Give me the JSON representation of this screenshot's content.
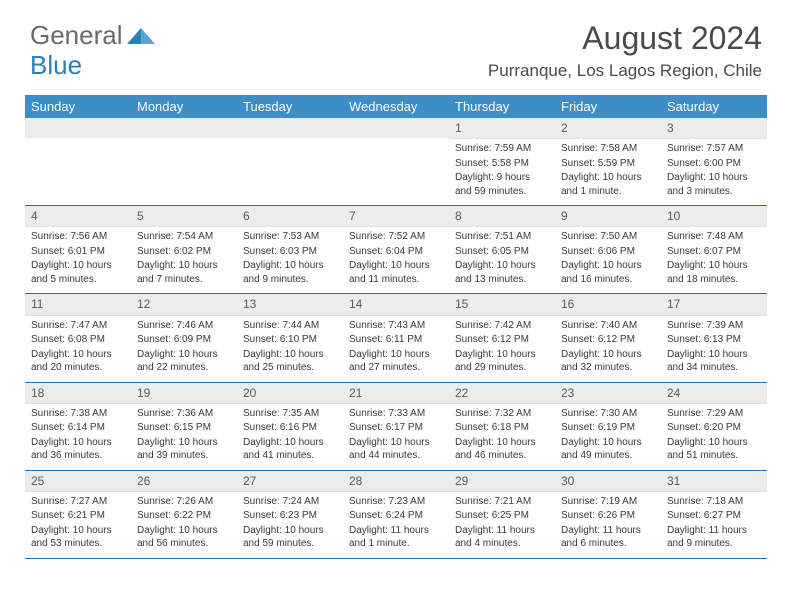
{
  "brand": {
    "text1": "General",
    "text2": "Blue",
    "icon_color": "#2a7fba"
  },
  "title": "August 2024",
  "location": "Purranque, Los Lagos Region, Chile",
  "colors": {
    "header_bg": "#3d8dc8",
    "header_text": "#ffffff",
    "num_bar_bg": "#ececec",
    "border": "#2a6da3",
    "text": "#3a3a3a"
  },
  "day_names": [
    "Sunday",
    "Monday",
    "Tuesday",
    "Wednesday",
    "Thursday",
    "Friday",
    "Saturday"
  ],
  "weeks": [
    [
      {
        "blank": true
      },
      {
        "blank": true
      },
      {
        "blank": true
      },
      {
        "blank": true
      },
      {
        "n": "1",
        "sunrise": "7:59 AM",
        "sunset": "5:58 PM",
        "daylight": "9 hours and 59 minutes."
      },
      {
        "n": "2",
        "sunrise": "7:58 AM",
        "sunset": "5:59 PM",
        "daylight": "10 hours and 1 minute."
      },
      {
        "n": "3",
        "sunrise": "7:57 AM",
        "sunset": "6:00 PM",
        "daylight": "10 hours and 3 minutes."
      }
    ],
    [
      {
        "n": "4",
        "sunrise": "7:56 AM",
        "sunset": "6:01 PM",
        "daylight": "10 hours and 5 minutes."
      },
      {
        "n": "5",
        "sunrise": "7:54 AM",
        "sunset": "6:02 PM",
        "daylight": "10 hours and 7 minutes."
      },
      {
        "n": "6",
        "sunrise": "7:53 AM",
        "sunset": "6:03 PM",
        "daylight": "10 hours and 9 minutes."
      },
      {
        "n": "7",
        "sunrise": "7:52 AM",
        "sunset": "6:04 PM",
        "daylight": "10 hours and 11 minutes."
      },
      {
        "n": "8",
        "sunrise": "7:51 AM",
        "sunset": "6:05 PM",
        "daylight": "10 hours and 13 minutes."
      },
      {
        "n": "9",
        "sunrise": "7:50 AM",
        "sunset": "6:06 PM",
        "daylight": "10 hours and 16 minutes."
      },
      {
        "n": "10",
        "sunrise": "7:48 AM",
        "sunset": "6:07 PM",
        "daylight": "10 hours and 18 minutes."
      }
    ],
    [
      {
        "n": "11",
        "sunrise": "7:47 AM",
        "sunset": "6:08 PM",
        "daylight": "10 hours and 20 minutes."
      },
      {
        "n": "12",
        "sunrise": "7:46 AM",
        "sunset": "6:09 PM",
        "daylight": "10 hours and 22 minutes."
      },
      {
        "n": "13",
        "sunrise": "7:44 AM",
        "sunset": "6:10 PM",
        "daylight": "10 hours and 25 minutes."
      },
      {
        "n": "14",
        "sunrise": "7:43 AM",
        "sunset": "6:11 PM",
        "daylight": "10 hours and 27 minutes."
      },
      {
        "n": "15",
        "sunrise": "7:42 AM",
        "sunset": "6:12 PM",
        "daylight": "10 hours and 29 minutes."
      },
      {
        "n": "16",
        "sunrise": "7:40 AM",
        "sunset": "6:12 PM",
        "daylight": "10 hours and 32 minutes."
      },
      {
        "n": "17",
        "sunrise": "7:39 AM",
        "sunset": "6:13 PM",
        "daylight": "10 hours and 34 minutes."
      }
    ],
    [
      {
        "n": "18",
        "sunrise": "7:38 AM",
        "sunset": "6:14 PM",
        "daylight": "10 hours and 36 minutes."
      },
      {
        "n": "19",
        "sunrise": "7:36 AM",
        "sunset": "6:15 PM",
        "daylight": "10 hours and 39 minutes."
      },
      {
        "n": "20",
        "sunrise": "7:35 AM",
        "sunset": "6:16 PM",
        "daylight": "10 hours and 41 minutes."
      },
      {
        "n": "21",
        "sunrise": "7:33 AM",
        "sunset": "6:17 PM",
        "daylight": "10 hours and 44 minutes."
      },
      {
        "n": "22",
        "sunrise": "7:32 AM",
        "sunset": "6:18 PM",
        "daylight": "10 hours and 46 minutes."
      },
      {
        "n": "23",
        "sunrise": "7:30 AM",
        "sunset": "6:19 PM",
        "daylight": "10 hours and 49 minutes."
      },
      {
        "n": "24",
        "sunrise": "7:29 AM",
        "sunset": "6:20 PM",
        "daylight": "10 hours and 51 minutes."
      }
    ],
    [
      {
        "n": "25",
        "sunrise": "7:27 AM",
        "sunset": "6:21 PM",
        "daylight": "10 hours and 53 minutes."
      },
      {
        "n": "26",
        "sunrise": "7:26 AM",
        "sunset": "6:22 PM",
        "daylight": "10 hours and 56 minutes."
      },
      {
        "n": "27",
        "sunrise": "7:24 AM",
        "sunset": "6:23 PM",
        "daylight": "10 hours and 59 minutes."
      },
      {
        "n": "28",
        "sunrise": "7:23 AM",
        "sunset": "6:24 PM",
        "daylight": "11 hours and 1 minute."
      },
      {
        "n": "29",
        "sunrise": "7:21 AM",
        "sunset": "6:25 PM",
        "daylight": "11 hours and 4 minutes."
      },
      {
        "n": "30",
        "sunrise": "7:19 AM",
        "sunset": "6:26 PM",
        "daylight": "11 hours and 6 minutes."
      },
      {
        "n": "31",
        "sunrise": "7:18 AM",
        "sunset": "6:27 PM",
        "daylight": "11 hours and 9 minutes."
      }
    ]
  ],
  "labels": {
    "sunrise": "Sunrise:",
    "sunset": "Sunset:",
    "daylight": "Daylight:"
  }
}
